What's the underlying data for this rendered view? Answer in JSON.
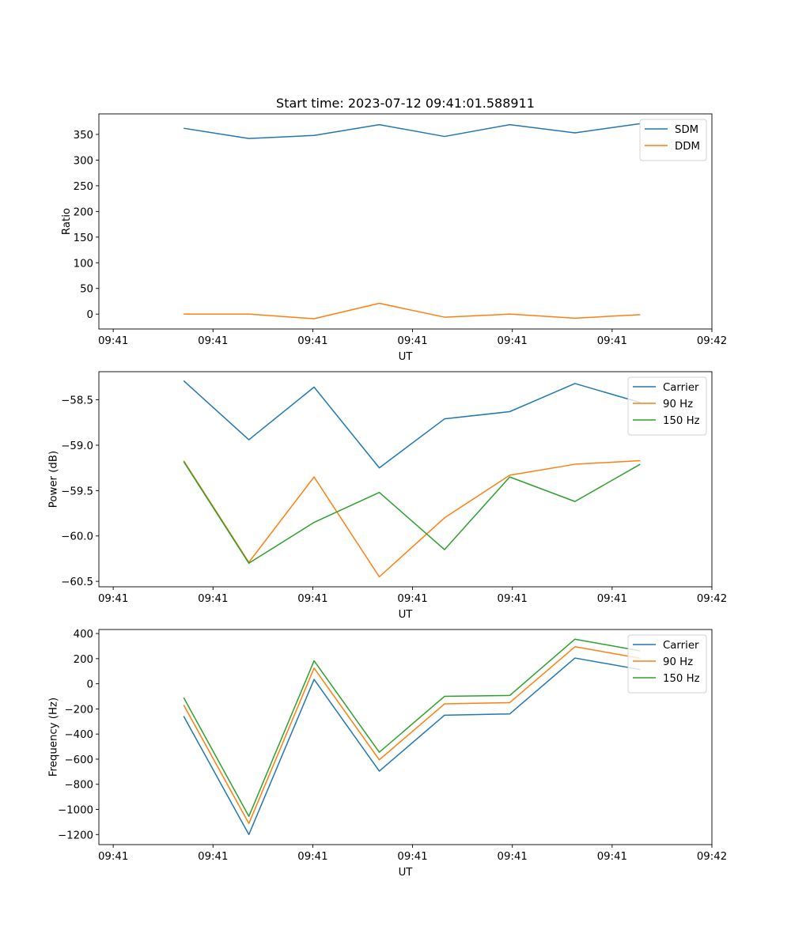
{
  "chart_data": [
    {
      "type": "line",
      "title": "Start time: 2023-07-12 09:41:01.588911",
      "xlabel": "UT",
      "ylabel": "Ratio",
      "x_tick_labels": [
        "09:41",
        "09:41",
        "09:41",
        "09:41",
        "09:41",
        "09:41",
        "09:42"
      ],
      "y_ticks": [
        0,
        50,
        100,
        150,
        200,
        250,
        300,
        350
      ],
      "y_tick_labels": [
        "0",
        "50",
        "100",
        "150",
        "200",
        "250",
        "300",
        "350"
      ],
      "ylim": [
        -29,
        390
      ],
      "x": [
        1,
        2,
        3,
        4,
        5,
        6,
        7,
        8
      ],
      "xlim": [
        -0.3,
        9.1
      ],
      "x_tick_positions": [
        -0.08,
        1.45,
        2.98,
        4.51,
        6.04,
        7.57,
        9.1
      ],
      "legend": "top-right",
      "grid": false,
      "series": [
        {
          "name": "SDM",
          "color": "#1f77b4",
          "values": [
            362,
            342,
            348,
            369,
            346,
            369,
            353,
            371
          ]
        },
        {
          "name": "DDM",
          "color": "#ff7f0e",
          "values": [
            0,
            0,
            -9,
            21,
            -6,
            0,
            -8,
            -1
          ]
        }
      ]
    },
    {
      "type": "line",
      "title": "",
      "xlabel": "UT",
      "ylabel": "Power (dB)",
      "x_tick_labels": [
        "09:41",
        "09:41",
        "09:41",
        "09:41",
        "09:41",
        "09:41",
        "09:42"
      ],
      "y_ticks": [
        -58.5,
        -59.0,
        -59.5,
        -60.0,
        -60.5
      ],
      "y_tick_labels": [
        "−58.5",
        "−59.0",
        "−59.5",
        "−60.0",
        "−60.5"
      ],
      "ylim": [
        -60.56,
        -58.19
      ],
      "x": [
        1,
        2,
        3,
        4,
        5,
        6,
        7,
        8
      ],
      "xlim": [
        -0.3,
        9.1
      ],
      "x_tick_positions": [
        -0.08,
        1.45,
        2.98,
        4.51,
        6.04,
        7.57,
        9.1
      ],
      "legend": "top-right",
      "grid": false,
      "series": [
        {
          "name": "Carrier",
          "color": "#1f77b4",
          "values": [
            -58.29,
            -58.94,
            -58.36,
            -59.25,
            -58.71,
            -58.63,
            -58.32,
            -58.53
          ]
        },
        {
          "name": "90 Hz",
          "color": "#ff7f0e",
          "values": [
            -59.17,
            -60.29,
            -59.35,
            -60.45,
            -59.8,
            -59.33,
            -59.21,
            -59.17
          ]
        },
        {
          "name": "150 Hz",
          "color": "#2ca02c",
          "values": [
            -59.18,
            -60.3,
            -59.85,
            -59.52,
            -60.15,
            -59.35,
            -59.62,
            -59.21
          ]
        }
      ]
    },
    {
      "type": "line",
      "title": "",
      "xlabel": "UT",
      "ylabel": "Frequency (Hz)",
      "x_tick_labels": [
        "09:41",
        "09:41",
        "09:41",
        "09:41",
        "09:41",
        "09:41",
        "09:42"
      ],
      "y_ticks": [
        400,
        200,
        0,
        -200,
        -400,
        -600,
        -800,
        -1000,
        -1200
      ],
      "y_tick_labels": [
        "400",
        "200",
        "0",
        "−200",
        "−400",
        "−600",
        "−800",
        "−1000",
        "−1200"
      ],
      "ylim": [
        -1280,
        432
      ],
      "x": [
        1,
        2,
        3,
        4,
        5,
        6,
        7,
        8
      ],
      "xlim": [
        -0.3,
        9.1
      ],
      "x_tick_positions": [
        -0.08,
        1.45,
        2.98,
        4.51,
        6.04,
        7.57,
        9.1
      ],
      "legend": "top-right",
      "grid": false,
      "series": [
        {
          "name": "Carrier",
          "color": "#1f77b4",
          "values": [
            -258,
            -1200,
            35,
            -695,
            -250,
            -240,
            205,
            113
          ]
        },
        {
          "name": "90 Hz",
          "color": "#ff7f0e",
          "values": [
            -168,
            -1112,
            125,
            -605,
            -160,
            -150,
            295,
            203
          ]
        },
        {
          "name": "150 Hz",
          "color": "#2ca02c",
          "values": [
            -110,
            -1055,
            183,
            -545,
            -100,
            -93,
            355,
            262
          ]
        }
      ]
    }
  ]
}
